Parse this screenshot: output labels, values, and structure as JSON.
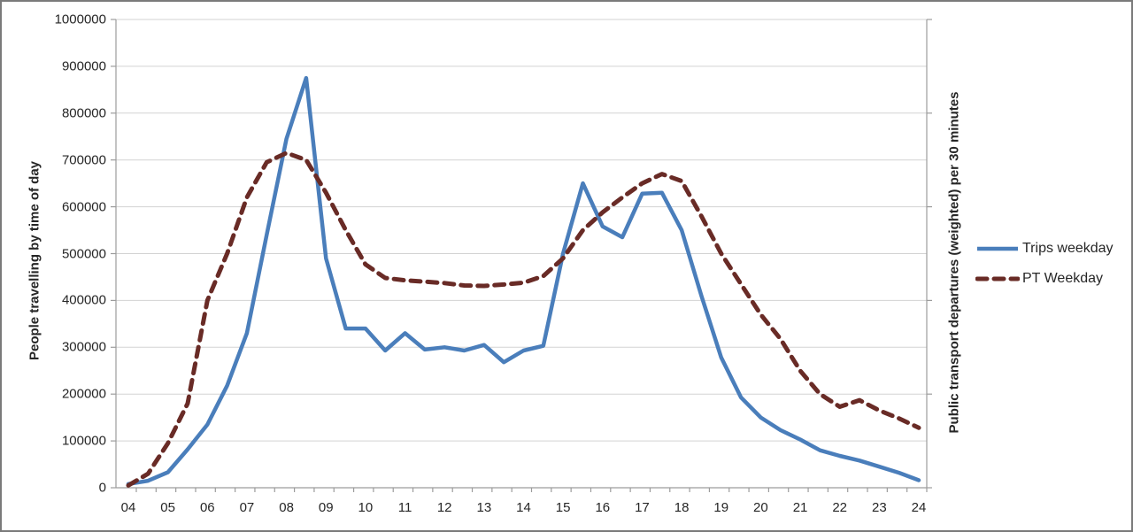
{
  "chart_data": {
    "type": "line",
    "title": "",
    "x_categories": [
      "04:00",
      "04:30",
      "05:00",
      "05:30",
      "06:00",
      "06:30",
      "07:00",
      "07:30",
      "08:00",
      "08:30",
      "09:00",
      "09:30",
      "10:00",
      "10:30",
      "11:00",
      "11:30",
      "12:00",
      "12:30",
      "13:00",
      "13:30",
      "14:00",
      "14:30",
      "15:00",
      "15:30",
      "16:00",
      "16:30",
      "17:00",
      "17:30",
      "18:00",
      "18:30",
      "19:00",
      "19:30",
      "20:00",
      "20:30",
      "21:00",
      "21:30",
      "22:00",
      "22:30",
      "23:00",
      "23:30",
      "24:00"
    ],
    "x_tick_labels": [
      "04",
      "05",
      "06",
      "07",
      "08",
      "09",
      "10",
      "11",
      "12",
      "13",
      "14",
      "15",
      "16",
      "17",
      "18",
      "19",
      "20",
      "21",
      "22",
      "23",
      "24"
    ],
    "ylabel": "People travelling by time of day",
    "y2label": "Public transport departures (weighted) per 30 minutes",
    "ylim": [
      0,
      1000000
    ],
    "y_ticks": [
      0,
      100000,
      200000,
      300000,
      400000,
      500000,
      600000,
      700000,
      800000,
      900000,
      1000000
    ],
    "grid": "horizontal",
    "legend_position": "right",
    "series": [
      {
        "name": "Trips weekday",
        "style": "solid",
        "color": "#4A7EBB",
        "axis": "left",
        "values": [
          8000,
          15000,
          33000,
          82000,
          135000,
          218000,
          330000,
          540000,
          745000,
          875000,
          490000,
          340000,
          340000,
          293000,
          330000,
          295000,
          300000,
          293000,
          305000,
          268000,
          293000,
          303000,
          500000,
          650000,
          558000,
          535000,
          628000,
          630000,
          550000,
          410000,
          278000,
          193000,
          150000,
          123000,
          103000,
          80000,
          68000,
          58000,
          45000,
          32000,
          16000
        ]
      },
      {
        "name": "PT Weekday",
        "style": "dashed",
        "color": "#692B26",
        "axis": "secondary",
        "values": [
          5000,
          30000,
          95000,
          180000,
          400000,
          500000,
          620000,
          695000,
          715000,
          700000,
          630000,
          550000,
          477000,
          448000,
          443000,
          440000,
          437000,
          432000,
          431000,
          434000,
          438000,
          452000,
          490000,
          550000,
          588000,
          620000,
          650000,
          670000,
          655000,
          580000,
          500000,
          435000,
          370000,
          318000,
          250000,
          200000,
          173000,
          187000,
          165000,
          148000,
          128000
        ]
      }
    ]
  },
  "colors": {
    "gridline": "#D3D3D3",
    "axis_line": "#9C9C9C",
    "text": "#262626",
    "background": "#FFFFFF",
    "border": "#7A7A7A"
  }
}
